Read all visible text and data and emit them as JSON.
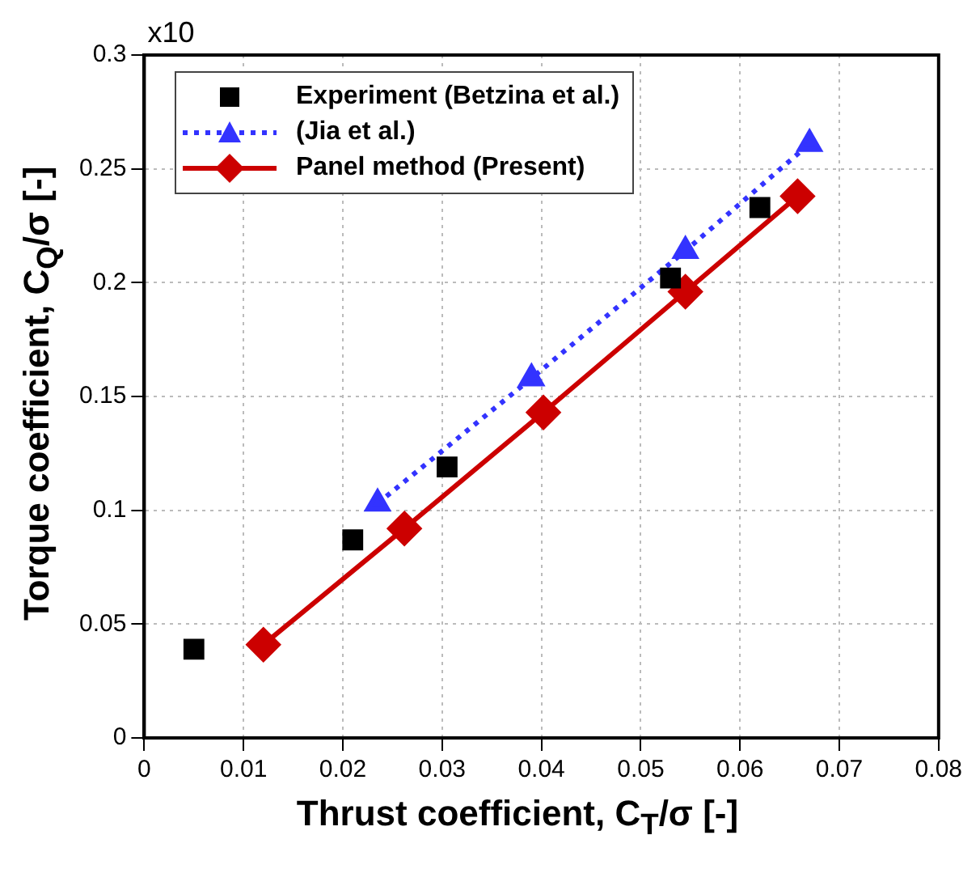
{
  "chart_data": {
    "type": "line",
    "xlabel": "Thrust coefficient, C$_{T}$/σ [-]",
    "ylabel": "Torque coefficient, C$_{Q}$/σ [-]",
    "annotations": [
      "x10"
    ],
    "xlim": [
      0,
      0.08
    ],
    "xticks": [
      0,
      0.01,
      0.02,
      0.03,
      0.04,
      0.05,
      0.06,
      0.07,
      0.08
    ],
    "ylim": [
      0,
      0.3
    ],
    "yticks": [
      0,
      0.05,
      0.1,
      0.15,
      0.2,
      0.25,
      0.3
    ],
    "grid": true,
    "legend": "top left",
    "series": [
      {
        "name": "Experiment (Betzina et al.)",
        "type": "scatter",
        "color": "#000000",
        "marker": "square",
        "x": [
          0.005,
          0.021,
          0.0305,
          0.053,
          0.062
        ],
        "values": [
          0.039,
          0.087,
          0.119,
          0.202,
          0.233
        ]
      },
      {
        "name": "(Jia et al.)",
        "color": "#3333ff",
        "marker": "triangle",
        "line_style": "dotted",
        "x": [
          0.0235,
          0.039,
          0.0545,
          0.067
        ],
        "values": [
          0.103,
          0.158,
          0.214,
          0.261
        ]
      },
      {
        "name": "Panel method (Present)",
        "color": "#cc0000",
        "marker": "diamond",
        "line_style": "solid",
        "x": [
          0.012,
          0.0262,
          0.0402,
          0.0545,
          0.0658
        ],
        "values": [
          0.041,
          0.092,
          0.143,
          0.196,
          0.238
        ]
      }
    ]
  }
}
